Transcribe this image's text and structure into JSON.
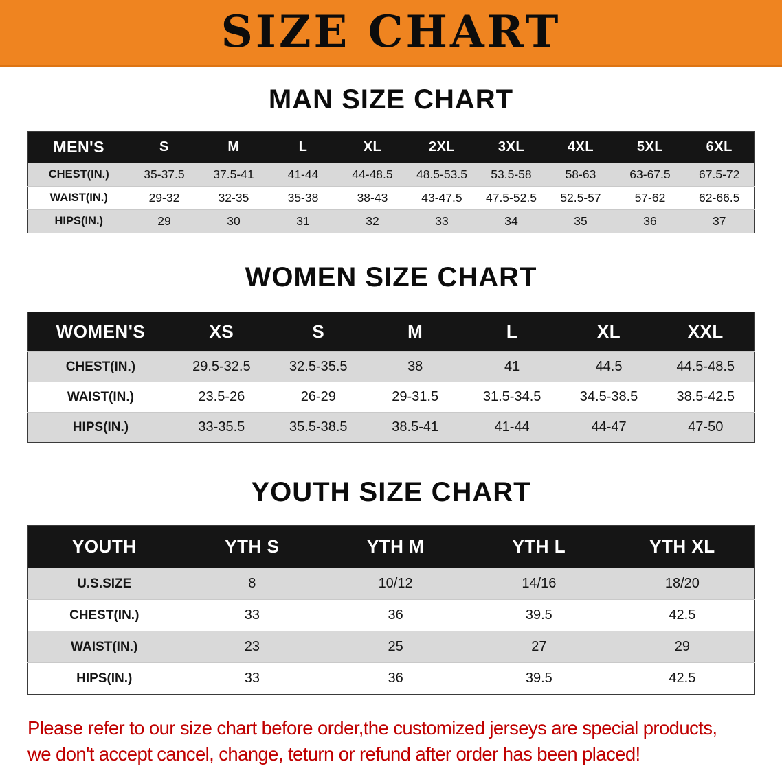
{
  "banner": {
    "title": "SIZE CHART"
  },
  "sections": [
    {
      "heading": "MAN SIZE CHART",
      "table": {
        "header": [
          "MEN'S",
          "S",
          "M",
          "L",
          "XL",
          "2XL",
          "3XL",
          "4XL",
          "5XL",
          "6XL"
        ],
        "rows": [
          [
            "CHEST(IN.)",
            "35-37.5",
            "37.5-41",
            "41-44",
            "44-48.5",
            "48.5-53.5",
            "53.5-58",
            "58-63",
            "63-67.5",
            "67.5-72"
          ],
          [
            "WAIST(IN.)",
            "29-32",
            "32-35",
            "35-38",
            "38-43",
            "43-47.5",
            "47.5-52.5",
            "52.5-57",
            "57-62",
            "62-66.5"
          ],
          [
            "HIPS(IN.)",
            "29",
            "30",
            "31",
            "32",
            "33",
            "34",
            "35",
            "36",
            "37"
          ]
        ]
      }
    },
    {
      "heading": "WOMEN SIZE CHART",
      "table": {
        "header": [
          "WOMEN'S",
          "XS",
          "S",
          "M",
          "L",
          "XL",
          "XXL"
        ],
        "rows": [
          [
            "CHEST(IN.)",
            "29.5-32.5",
            "32.5-35.5",
            "38",
            "41",
            "44.5",
            "44.5-48.5"
          ],
          [
            "WAIST(IN.)",
            "23.5-26",
            "26-29",
            "29-31.5",
            "31.5-34.5",
            "34.5-38.5",
            "38.5-42.5"
          ],
          [
            "HIPS(IN.)",
            "33-35.5",
            "35.5-38.5",
            "38.5-41",
            "41-44",
            "44-47",
            "47-50"
          ]
        ]
      }
    },
    {
      "heading": "YOUTH SIZE CHART",
      "table": {
        "header": [
          "YOUTH",
          "YTH S",
          "YTH M",
          "YTH L",
          "YTH XL"
        ],
        "rows": [
          [
            "U.S.SIZE",
            "8",
            "10/12",
            "14/16",
            "18/20"
          ],
          [
            "CHEST(IN.)",
            "33",
            "36",
            "39.5",
            "42.5"
          ],
          [
            "WAIST(IN.)",
            "23",
            "25",
            "27",
            "29"
          ],
          [
            "HIPS(IN.)",
            "33",
            "36",
            "39.5",
            "42.5"
          ]
        ]
      }
    }
  ],
  "disclaimer": {
    "line1": "Please refer to our size chart before order,the customized jerseys are special products,",
    "line2": "we don't accept cancel, change, teturn or refund after order has been placed!"
  },
  "colors": {
    "banner-orange": "#ef8420",
    "banner-orange-dark": "#dd7413",
    "table-header-bg": "#151515",
    "row-shade": "#d9d9d9",
    "disclaimer-red": "#c00000"
  }
}
